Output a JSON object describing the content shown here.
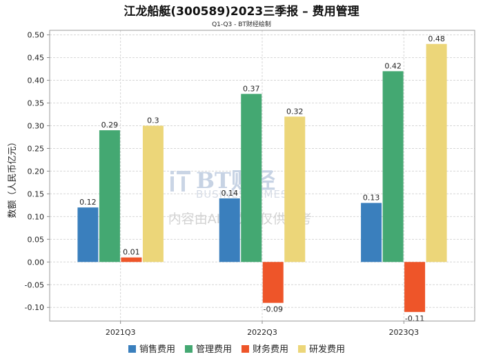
{
  "chart_data": {
    "type": "bar",
    "title": "江龙船艇(300589)2023三季报 – 费用管理",
    "subtitle": "Q1-Q3 - BT财经绘制",
    "xlabel": "",
    "ylabel": "数额（人民币亿元）",
    "ylim": [
      -0.13,
      0.51
    ],
    "yticks": [
      -0.1,
      -0.05,
      0.0,
      0.05,
      0.1,
      0.15,
      0.2,
      0.25,
      0.3,
      0.35,
      0.4,
      0.45,
      0.5
    ],
    "grid": true,
    "legend_position": "bottom",
    "categories": [
      "2021Q3",
      "2022Q3",
      "2023Q3"
    ],
    "series": [
      {
        "name": "销售费用",
        "color": "#3a7fbd",
        "values": [
          0.12,
          0.14,
          0.13
        ],
        "labels": [
          "0.12",
          "0.14",
          "0.13"
        ]
      },
      {
        "name": "管理费用",
        "color": "#44a872",
        "values": [
          0.29,
          0.37,
          0.42
        ],
        "labels": [
          "0.29",
          "0.37",
          "0.42"
        ]
      },
      {
        "name": "财务费用",
        "color": "#ee5529",
        "values": [
          0.01,
          -0.09,
          -0.11
        ],
        "labels": [
          "0.01",
          "-0.09",
          "-0.11"
        ]
      },
      {
        "name": "研发费用",
        "color": "#ecd679",
        "values": [
          0.3,
          0.32,
          0.48
        ],
        "labels": [
          "0.3",
          "0.32",
          "0.48"
        ]
      }
    ]
  },
  "watermark": {
    "brand": "BT财经",
    "brand_en": "BUSINESSTIMES",
    "note": "内容由AI生成，仅供参考"
  }
}
